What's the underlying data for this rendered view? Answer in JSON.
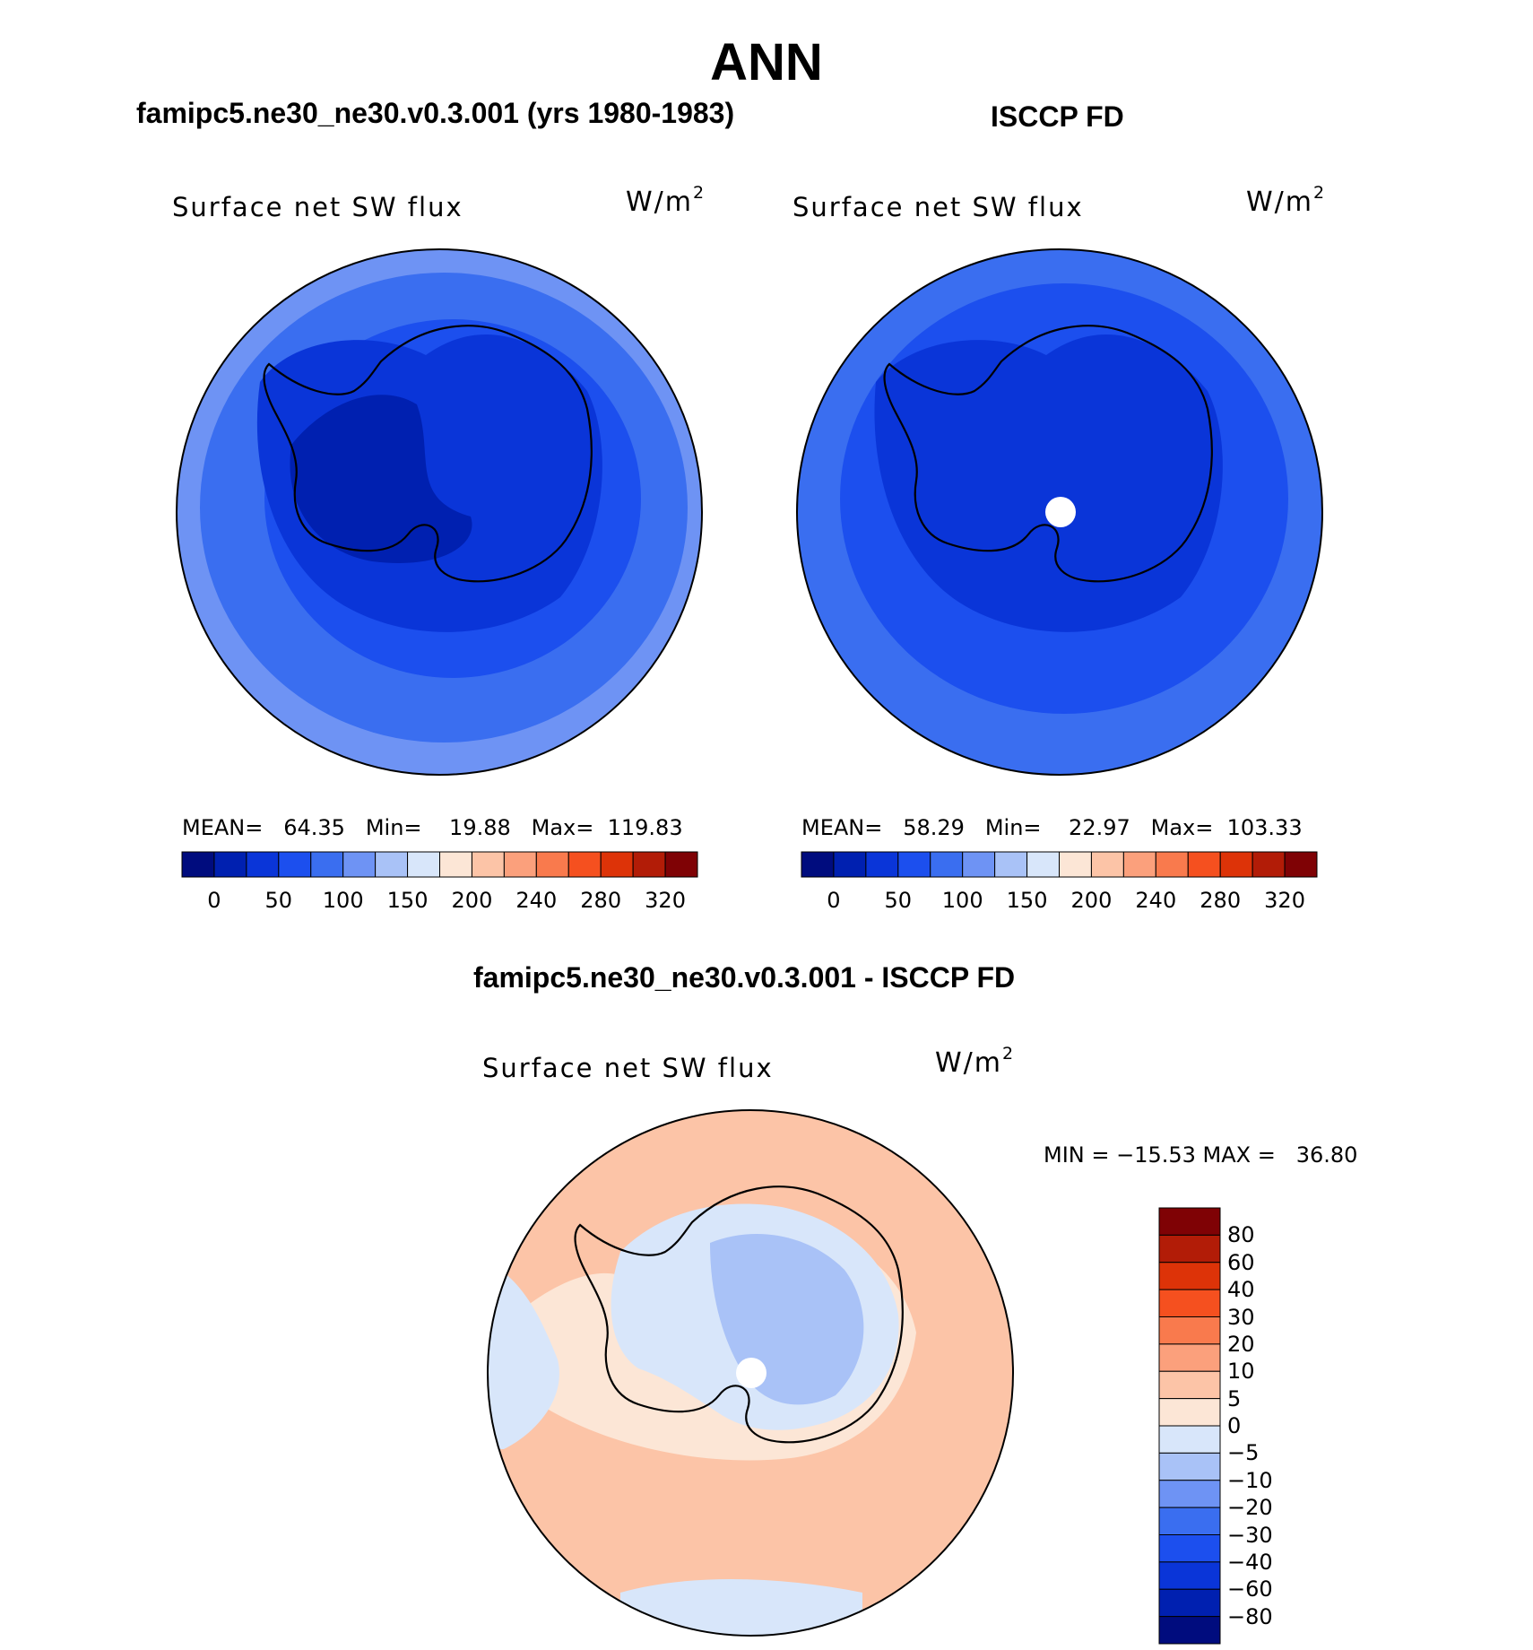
{
  "figure": {
    "title": "ANN",
    "panels": [
      {
        "title": "famipc5.ne30_ne30.v0.3.001 (yrs 1980-1983)",
        "variable": "Surface net SW flux",
        "units": "W/m",
        "units_sup": "2",
        "stats": "MEAN=   64.35   Min=    19.88   Max=  119.83"
      },
      {
        "title": "ISCCP FD",
        "variable": "Surface net SW flux",
        "units": "W/m",
        "units_sup": "2",
        "stats": "MEAN=   58.29   Min=    22.97   Max=  103.33"
      },
      {
        "title": "famipc5.ne30_ne30.v0.3.001 - ISCCP FD",
        "variable": "Surface net SW flux",
        "units": "W/m",
        "units_sup": "2",
        "stats": "MIN = −15.53 MAX =   36.80"
      }
    ]
  },
  "colorbars": {
    "absolute": {
      "colors": [
        "#000c7e",
        "#0020b0",
        "#0a35d8",
        "#1c4fee",
        "#3a6ef0",
        "#6e93f4",
        "#a9c2f7",
        "#d8e6fa",
        "#fce6d6",
        "#fcc4a7",
        "#fba07c",
        "#f97a4d",
        "#f5501f",
        "#dd3308",
        "#b21c07",
        "#7f0205"
      ],
      "labels": [
        "0",
        "50",
        "100",
        "150",
        "200",
        "240",
        "280",
        "320"
      ]
    },
    "difference": {
      "colors": [
        "#000c7e",
        "#0020b0",
        "#0a35d8",
        "#1c4fee",
        "#3a6ef0",
        "#6e93f4",
        "#a9c2f7",
        "#d8e6fa",
        "#fce6d6",
        "#fcc4a7",
        "#fba07c",
        "#f97a4d",
        "#f5501f",
        "#dd3308",
        "#b21c07",
        "#7f0205"
      ],
      "labels": [
        "80",
        "60",
        "40",
        "30",
        "20",
        "10",
        "5",
        "0",
        "−5",
        "−10",
        "−20",
        "−30",
        "−40",
        "−60",
        "−80"
      ]
    }
  },
  "colors": {
    "ocean_outer": "#3a6ef0",
    "ocean_mid": "#1c4fee",
    "ice_shelf": "#0a35d8",
    "interior": "#0020b0",
    "diff_warm": "#fcc4a7",
    "diff_light": "#fce6d6",
    "diff_cool": "#d8e6fa",
    "diff_cooler": "#a9c2f7"
  }
}
